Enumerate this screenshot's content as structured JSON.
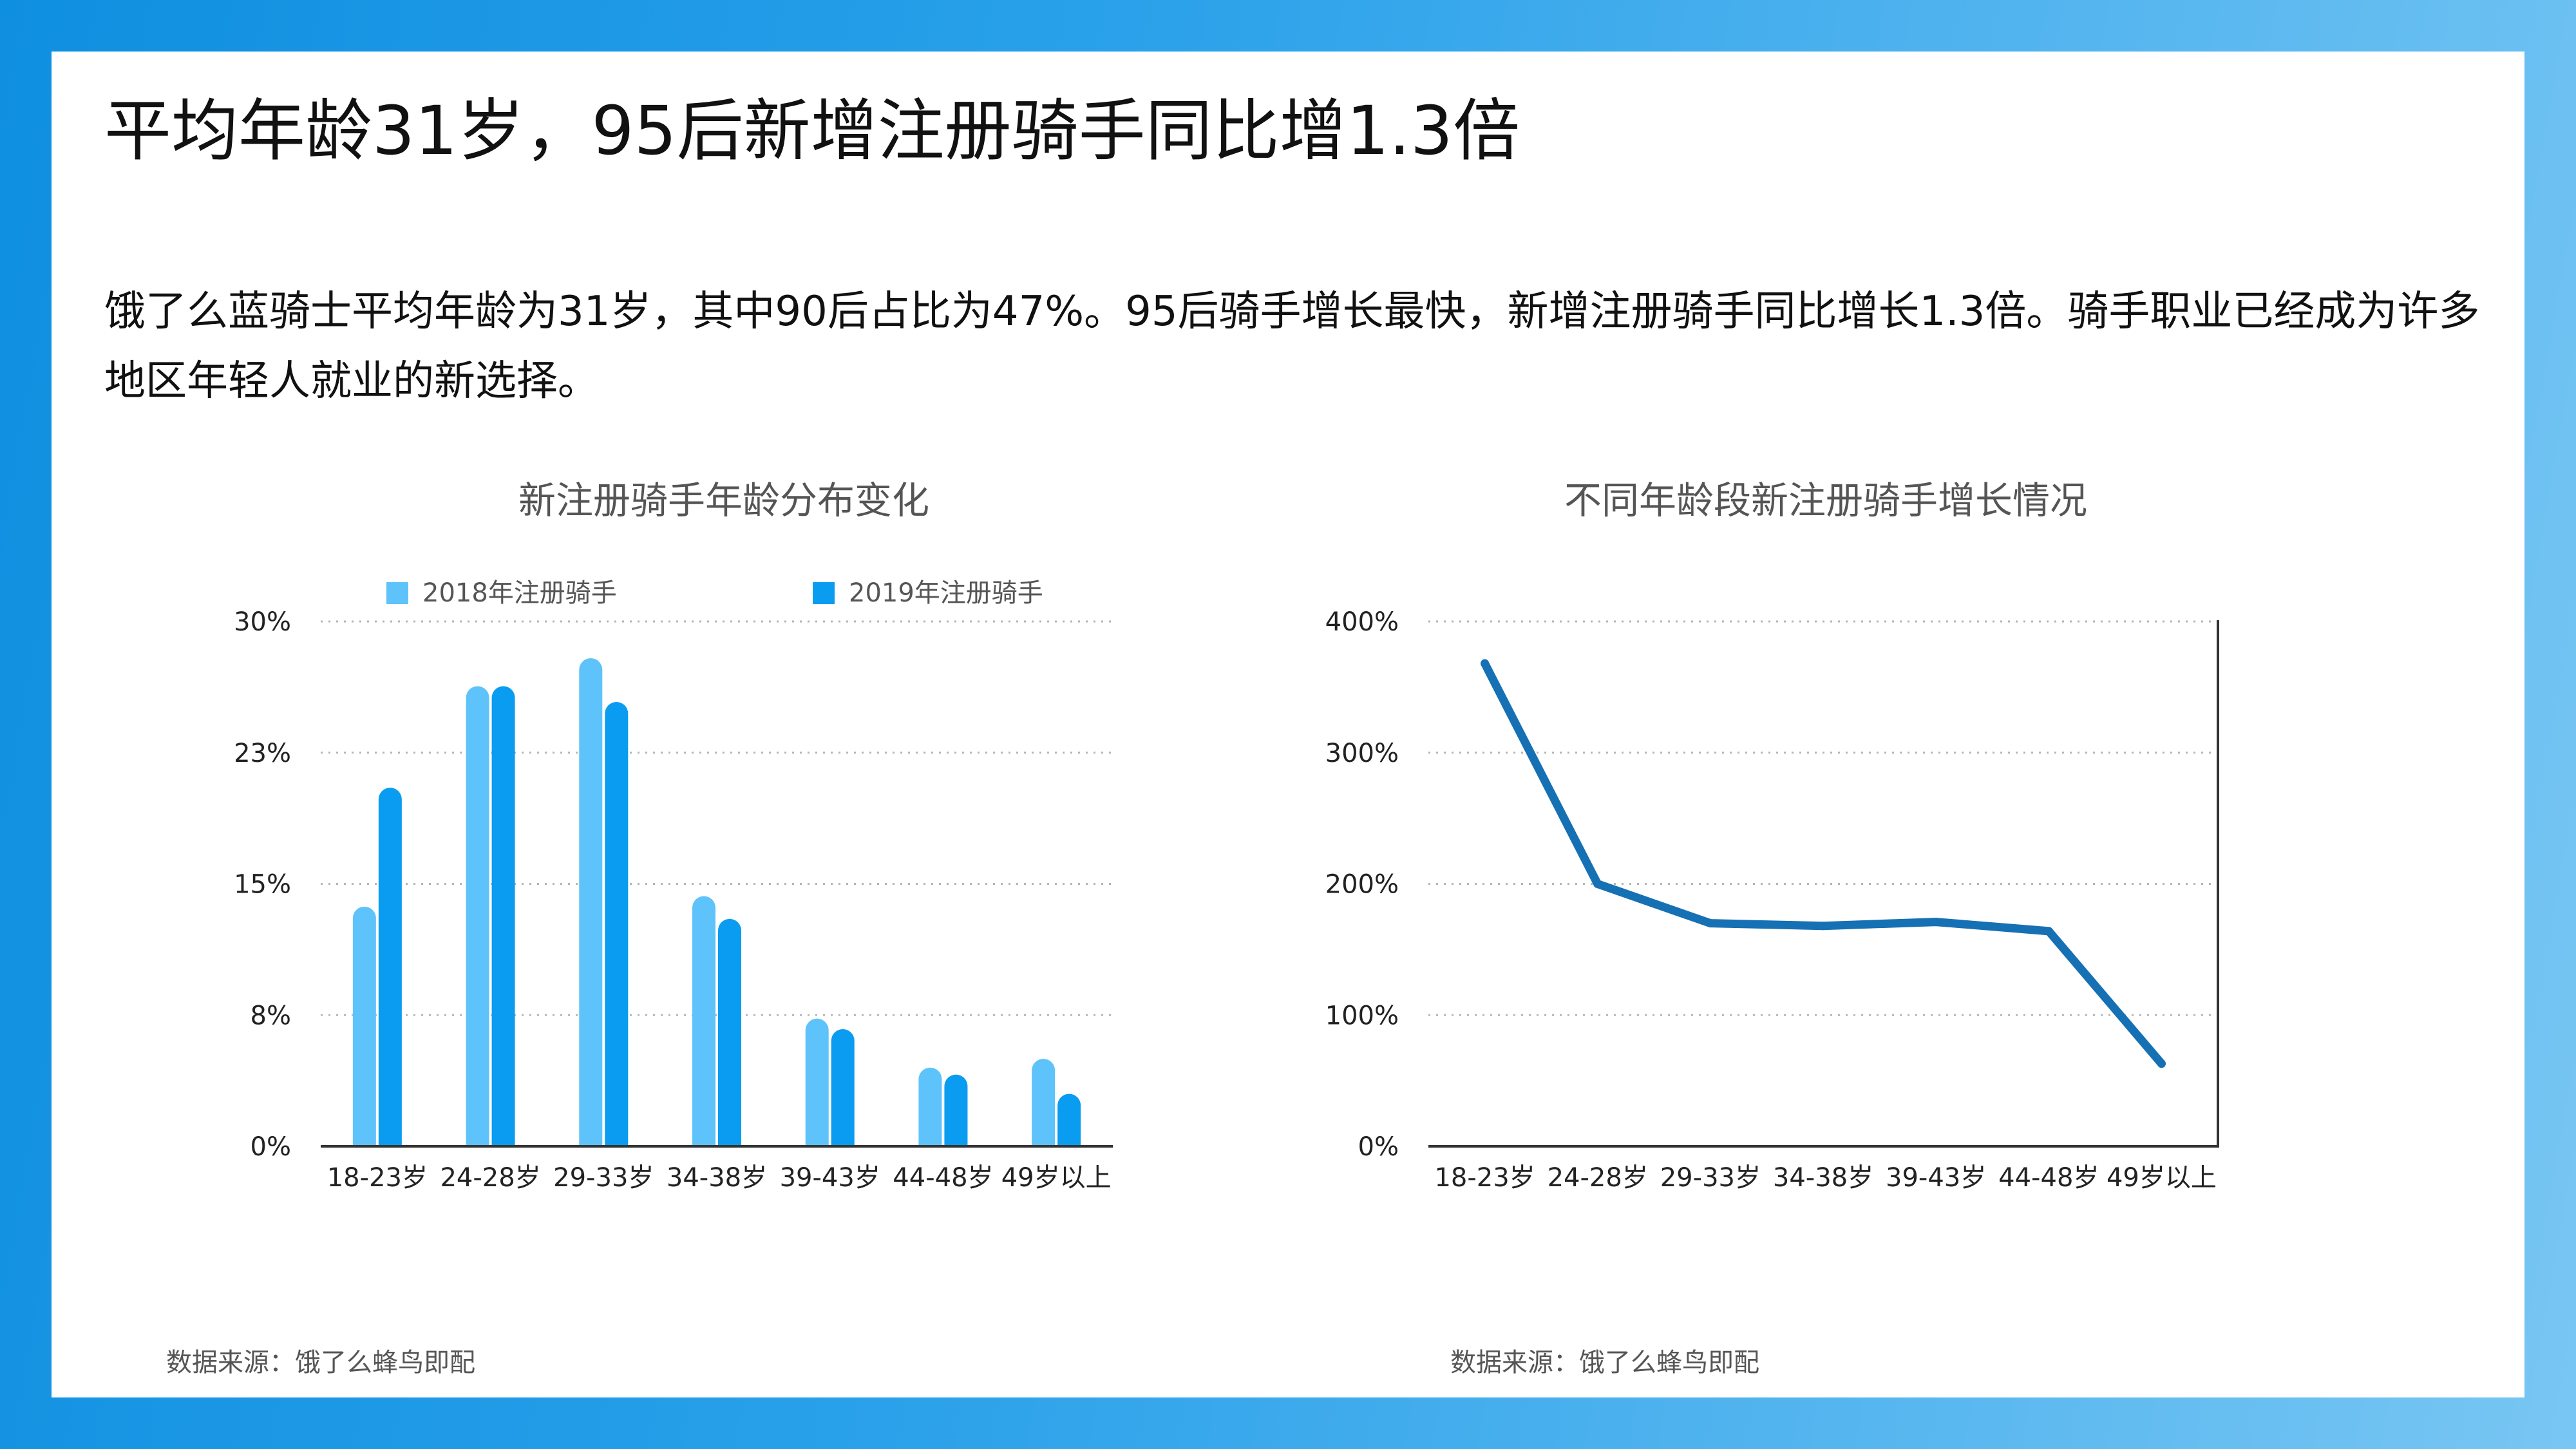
{
  "header": {
    "title": "平均年龄31岁，95后新增注册骑手同比增1.3倍",
    "description": "饿了么蓝骑士平均年龄为31岁，其中90后占比为47%。95后骑手增长最快，新增注册骑手同比增长1.3倍。骑手职业已经成为许多地区年轻人就业的新选择。"
  },
  "colors": {
    "frame": "#1a96e4",
    "series_2018": "#5ec3fb",
    "series_2019": "#0a9cf0",
    "line": "#1670b4"
  },
  "chart_data": [
    {
      "type": "bar",
      "title": "新注册骑手年龄分布变化",
      "categories": [
        "18-23岁",
        "24-28岁",
        "29-33岁",
        "34-38岁",
        "39-43岁",
        "44-48岁",
        "49岁以上"
      ],
      "y_ticks": [
        "0%",
        "8%",
        "15%",
        "23%",
        "30%"
      ],
      "ylim": [
        0,
        30
      ],
      "grid": true,
      "legend_position": "top",
      "series": [
        {
          "name": "2018年注册骑手",
          "values": [
            13.7,
            26.3,
            27.9,
            14.3,
            7.3,
            4.5,
            5.0
          ]
        },
        {
          "name": "2019年注册骑手",
          "values": [
            20.5,
            26.3,
            25.4,
            13.0,
            6.7,
            4.1,
            3.0
          ]
        }
      ],
      "source": "数据来源：饿了么蜂鸟即配"
    },
    {
      "type": "line",
      "title": "不同年龄段新注册骑手增长情况",
      "categories": [
        "18-23岁",
        "24-28岁",
        "29-33岁",
        "34-38岁",
        "39-43岁",
        "44-48岁",
        "49岁以上"
      ],
      "y_ticks": [
        "0%",
        "100%",
        "200%",
        "300%",
        "400%"
      ],
      "ylim": [
        0,
        400
      ],
      "grid": true,
      "series": [
        {
          "values": [
            368,
            200,
            170,
            168,
            171,
            164,
            63
          ]
        }
      ],
      "source": "数据来源：饿了么蜂鸟即配"
    }
  ]
}
